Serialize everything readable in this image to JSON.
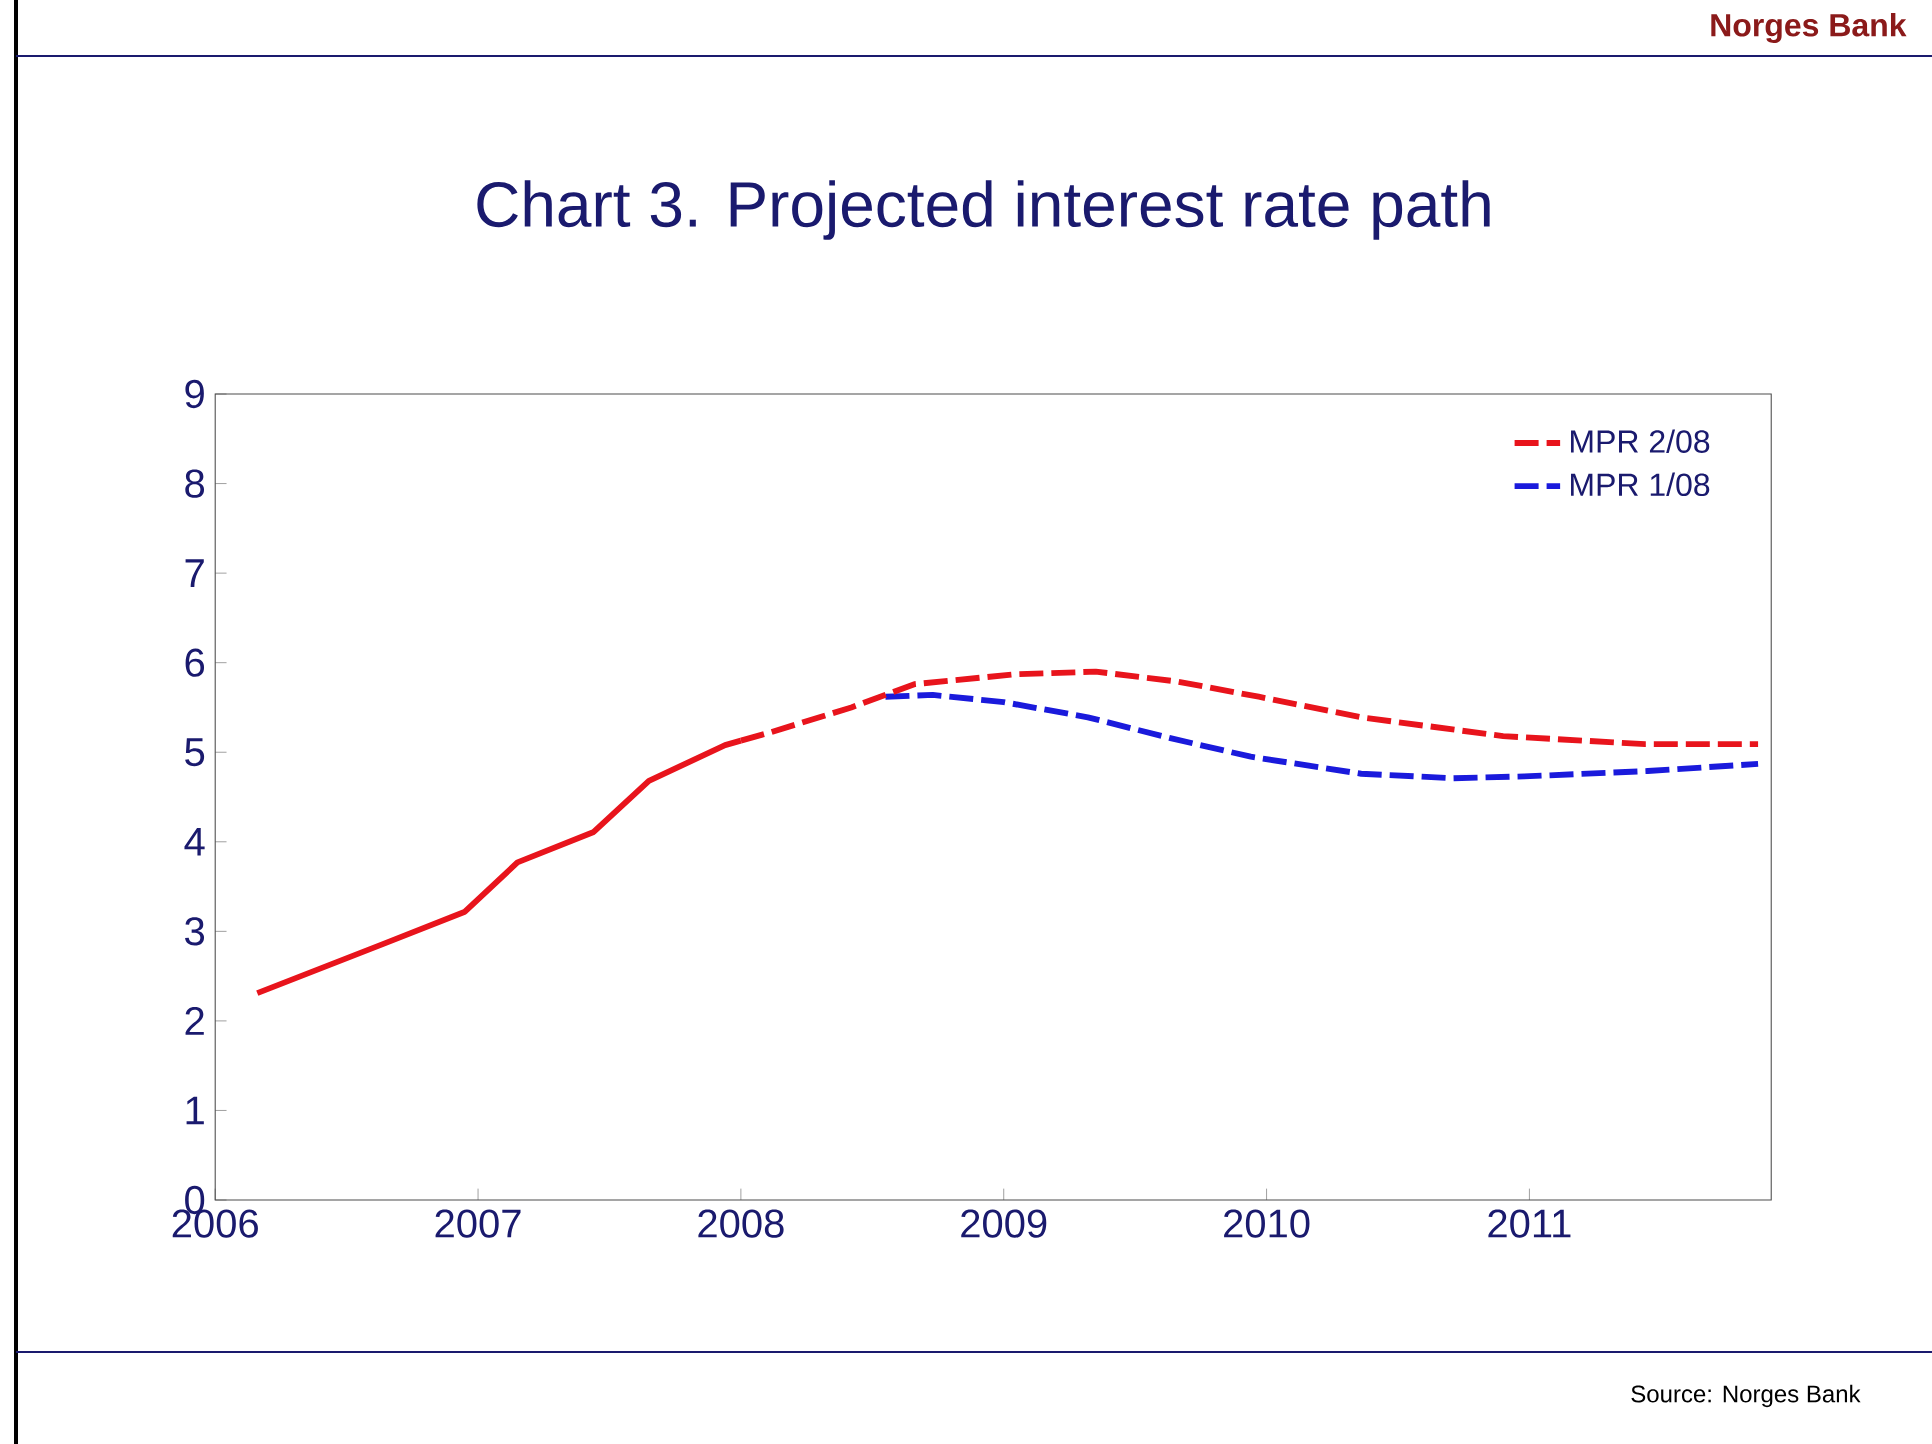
{
  "chart_data": {
    "type": "line",
    "title": "Chart 3. Projected interest rate path",
    "annotations": [
      "Norges Bank",
      "Source: Norges Bank"
    ],
    "xlim": [
      2006,
      2011.92
    ],
    "xticks": [
      2006,
      2007,
      2008,
      2009,
      2010,
      2011
    ],
    "ylim": [
      0,
      9
    ],
    "yticks": [
      0,
      1,
      2,
      3,
      4,
      5,
      6,
      7,
      8,
      9
    ],
    "grid": false,
    "legend": "top right",
    "marker": "none",
    "series": [
      {
        "color": "#e8141c",
        "line_style": "solid",
        "x": [
          2006.16,
          2006.64,
          2006.95,
          2007.15,
          2007.44,
          2007.65,
          2007.94,
          2008.0
        ],
        "values": [
          2.31,
          2.86,
          3.22,
          3.77,
          4.11,
          4.68,
          5.08,
          5.13
        ]
      },
      {
        "name": "MPR 2/08",
        "color": "#e8141c",
        "line_style": "dashed",
        "x": [
          2008.0,
          2008.11,
          2008.42,
          2008.66,
          2009.04,
          2009.35,
          2009.66,
          2009.97,
          2010.36,
          2010.9,
          2011.44,
          2011.87
        ],
        "values": [
          5.13,
          5.22,
          5.5,
          5.76,
          5.87,
          5.9,
          5.79,
          5.62,
          5.39,
          5.18,
          5.09,
          5.09
        ]
      },
      {
        "name": "MPR 1/08",
        "color": "#1a1adc",
        "line_style": "dashed",
        "x": [
          2008.55,
          2008.73,
          2009.0,
          2009.32,
          2009.63,
          2009.94,
          2010.36,
          2010.71,
          2010.98,
          2011.45,
          2011.87
        ],
        "values": [
          5.62,
          5.64,
          5.56,
          5.39,
          5.16,
          4.95,
          4.76,
          4.71,
          4.73,
          4.79,
          4.87
        ]
      }
    ]
  }
}
